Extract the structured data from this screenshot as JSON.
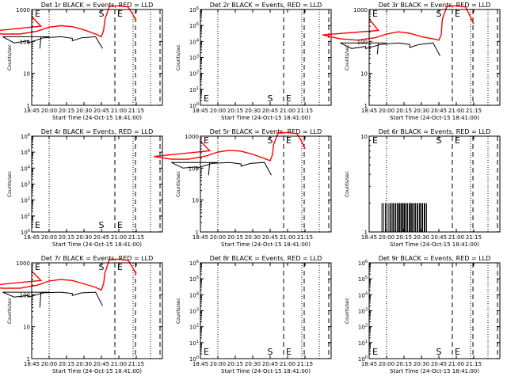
{
  "figure": {
    "xlabel": "Start Time (24-Oct-15 18:41:00)",
    "ylabel": "Counts/sec",
    "x_ticks": [
      "18:45",
      "20:00",
      "20:15",
      "20:30",
      "20:45",
      "21:00",
      "21:15"
    ],
    "colors": {
      "events": "#000000",
      "lld": "#ff0000",
      "axes": "#000000"
    }
  },
  "chart_data": [
    {
      "type": "line",
      "title": "Det 1r BLACK = Events, RED = LLD",
      "y_scale": "log",
      "ylim": [
        1,
        1000
      ],
      "y_ticks": [
        "1",
        "10",
        "100",
        "1000"
      ],
      "marker_labels": [
        {
          "text": "E",
          "x": "18:45"
        },
        {
          "text": "S",
          "x": "20:45"
        },
        {
          "text": "E",
          "x": "21:01"
        }
      ],
      "has_data": true,
      "series": [
        {
          "role": "lld",
          "x": [
            "18:45",
            "18:53",
            "19:05",
            "19:20",
            "19:35",
            "19:50",
            "20:00",
            "20:10",
            "20:20",
            "20:30",
            "20:40",
            "20:45",
            "20:47",
            "20:48",
            "20:52",
            "20:57",
            "21:00",
            "21:08",
            "21:12",
            "21:15"
          ],
          "values": [
            600,
            300,
            200,
            170,
            170,
            210,
            280,
            310,
            290,
            230,
            170,
            140,
            230,
            480,
            1300,
            1300,
            1300,
            1200,
            700,
            450
          ]
        },
        {
          "role": "events",
          "x": [
            "18:52",
            "18:53",
            "19:00",
            "19:20",
            "19:30",
            "19:42",
            "19:42",
            "19:55",
            "20:10",
            "20:20",
            "20:20",
            "20:28",
            "20:40",
            "20:46"
          ],
          "values": [
            60,
            140,
            140,
            140,
            90,
            105,
            90,
            130,
            140,
            125,
            105,
            130,
            140,
            60
          ]
        }
      ]
    },
    {
      "type": "line",
      "title": "Det 2r BLACK = Events, RED = LLD",
      "y_scale": "log",
      "ylim": [
        1,
        1000000
      ],
      "y_ticks": [
        "10^0",
        "10^1",
        "10^2",
        "10^3",
        "10^4",
        "10^5",
        "10^6"
      ],
      "marker_labels": [
        {
          "text": "E",
          "x": "18:45"
        },
        {
          "text": "S",
          "x": "20:45"
        },
        {
          "text": "E",
          "x": "21:01"
        }
      ],
      "has_data": false,
      "series": []
    },
    {
      "type": "line",
      "title": "Det 3r BLACK = Events, RED = LLD",
      "y_scale": "log",
      "ylim": [
        1,
        1000
      ],
      "y_ticks": [
        "1",
        "10",
        "100",
        "1000"
      ],
      "marker_labels": [
        {
          "text": "E",
          "x": "18:45"
        },
        {
          "text": "S",
          "x": "20:45"
        },
        {
          "text": "E",
          "x": "21:01"
        }
      ],
      "has_data": true,
      "series": [
        {
          "role": "lld",
          "x": [
            "18:45",
            "18:53",
            "19:05",
            "19:20",
            "19:35",
            "19:50",
            "20:00",
            "20:10",
            "20:20",
            "20:30",
            "20:40",
            "20:45",
            "20:47",
            "20:48",
            "20:52",
            "20:57",
            "21:00",
            "21:08",
            "21:12",
            "21:15"
          ],
          "values": [
            500,
            220,
            160,
            120,
            110,
            130,
            170,
            200,
            180,
            140,
            120,
            110,
            160,
            500,
            1300,
            1300,
            1300,
            1200,
            600,
            350
          ]
        },
        {
          "role": "events",
          "x": [
            "18:52",
            "18:53",
            "19:00",
            "19:20",
            "19:30",
            "19:42",
            "19:42",
            "19:55",
            "20:10",
            "20:20",
            "20:20",
            "20:28",
            "20:40",
            "20:46"
          ],
          "values": [
            40,
            90,
            90,
            90,
            60,
            70,
            60,
            80,
            90,
            80,
            65,
            80,
            90,
            35
          ]
        }
      ]
    },
    {
      "type": "line",
      "title": "Det 4r BLACK = Events, RED = LLD",
      "y_scale": "log",
      "ylim": [
        1,
        1000000
      ],
      "y_ticks": [
        "10^0",
        "10^1",
        "10^2",
        "10^3",
        "10^4",
        "10^5",
        "10^6"
      ],
      "marker_labels": [
        {
          "text": "E",
          "x": "18:45"
        },
        {
          "text": "S",
          "x": "20:45"
        },
        {
          "text": "E",
          "x": "21:01"
        }
      ],
      "has_data": false,
      "series": []
    },
    {
      "type": "line",
      "title": "Det 5r BLACK = Events, RED = LLD",
      "y_scale": "log",
      "ylim": [
        1,
        1000
      ],
      "y_ticks": [
        "1",
        "10",
        "100",
        "1000"
      ],
      "marker_labels": [
        {
          "text": "E",
          "x": "18:45"
        },
        {
          "text": "S",
          "x": "20:45"
        },
        {
          "text": "E",
          "x": "21:01"
        }
      ],
      "has_data": true,
      "series": [
        {
          "role": "lld",
          "x": [
            "18:45",
            "18:53",
            "19:05",
            "19:20",
            "19:35",
            "19:50",
            "20:00",
            "20:10",
            "20:20",
            "20:30",
            "20:40",
            "20:45",
            "20:47",
            "20:48",
            "20:52",
            "20:57",
            "21:00",
            "21:08",
            "21:12",
            "21:15"
          ],
          "values": [
            700,
            350,
            230,
            190,
            190,
            240,
            320,
            360,
            340,
            270,
            200,
            170,
            260,
            550,
            1300,
            1300,
            1300,
            1200,
            700,
            400
          ]
        },
        {
          "role": "events",
          "x": [
            "18:52",
            "18:53",
            "19:00",
            "19:20",
            "19:30",
            "19:42",
            "19:42",
            "19:55",
            "20:10",
            "20:20",
            "20:20",
            "20:28",
            "20:40",
            "20:46"
          ],
          "values": [
            60,
            150,
            150,
            150,
            100,
            110,
            100,
            140,
            150,
            135,
            115,
            140,
            150,
            60
          ]
        }
      ]
    },
    {
      "type": "line",
      "title": "Det 6r BLACK = Events, RED = LLD",
      "y_scale": "log",
      "ylim": [
        1,
        10
      ],
      "y_ticks": [
        "1",
        "10"
      ],
      "marker_labels": [
        {
          "text": "E",
          "x": "18:45"
        },
        {
          "text": "S",
          "x": "20:45"
        },
        {
          "text": "E",
          "x": "21:01"
        }
      ],
      "has_data": true,
      "series": [
        {
          "role": "events",
          "x": [
            "19:56",
            "19:59",
            "20:02",
            "20:04",
            "20:06",
            "20:08",
            "20:10",
            "20:11",
            "20:13",
            "20:14",
            "20:16",
            "20:18",
            "20:20",
            "20:21",
            "20:23",
            "20:25",
            "20:27",
            "20:29",
            "20:31",
            "20:33"
          ],
          "values": [
            2,
            2,
            2,
            2,
            2,
            2,
            2,
            2,
            2,
            2,
            2,
            2,
            2,
            2,
            2,
            2,
            2,
            2,
            2,
            2
          ]
        }
      ]
    },
    {
      "type": "line",
      "title": "Det 7r BLACK = Events, RED = LLD",
      "y_scale": "log",
      "ylim": [
        1,
        1000
      ],
      "y_ticks": [
        "1",
        "10",
        "100",
        "1000"
      ],
      "marker_labels": [
        {
          "text": "E",
          "x": "18:45"
        },
        {
          "text": "S",
          "x": "20:45"
        },
        {
          "text": "E",
          "x": "21:01"
        }
      ],
      "has_data": true,
      "series": [
        {
          "role": "lld",
          "x": [
            "18:45",
            "18:53",
            "19:05",
            "19:20",
            "19:35",
            "19:50",
            "20:00",
            "20:10",
            "20:20",
            "20:30",
            "20:40",
            "20:45",
            "20:47",
            "20:48",
            "20:52",
            "20:57",
            "21:00",
            "21:08",
            "21:12",
            "21:15"
          ],
          "values": [
            550,
            280,
            190,
            160,
            160,
            200,
            270,
            300,
            280,
            220,
            170,
            140,
            230,
            480,
            1300,
            1300,
            1300,
            1200,
            700,
            450
          ]
        },
        {
          "role": "events",
          "x": [
            "18:52",
            "18:53",
            "19:00",
            "19:20",
            "19:30",
            "19:42",
            "19:42",
            "19:55",
            "20:10",
            "20:20",
            "20:20",
            "20:28",
            "20:40",
            "20:46"
          ],
          "values": [
            40,
            120,
            120,
            120,
            85,
            95,
            85,
            115,
            120,
            110,
            95,
            115,
            120,
            45
          ]
        }
      ]
    },
    {
      "type": "line",
      "title": "Det 8r BLACK = Events, RED = LLD",
      "y_scale": "log",
      "ylim": [
        1,
        1000000
      ],
      "y_ticks": [
        "10^0",
        "10^1",
        "10^2",
        "10^3",
        "10^4",
        "10^5",
        "10^6"
      ],
      "marker_labels": [
        {
          "text": "E",
          "x": "18:45"
        },
        {
          "text": "S",
          "x": "20:45"
        },
        {
          "text": "E",
          "x": "21:01"
        }
      ],
      "has_data": false,
      "series": []
    },
    {
      "type": "line",
      "title": "Det 9r BLACK = Events, RED = LLD",
      "y_scale": "log",
      "ylim": [
        1,
        1000000
      ],
      "y_ticks": [
        "10^0",
        "10^1",
        "10^2",
        "10^3",
        "10^4",
        "10^5",
        "10^6"
      ],
      "marker_labels": [
        {
          "text": "E",
          "x": "18:45"
        },
        {
          "text": "S",
          "x": "20:45"
        },
        {
          "text": "E",
          "x": "21:01"
        }
      ],
      "has_data": false,
      "series": []
    }
  ]
}
